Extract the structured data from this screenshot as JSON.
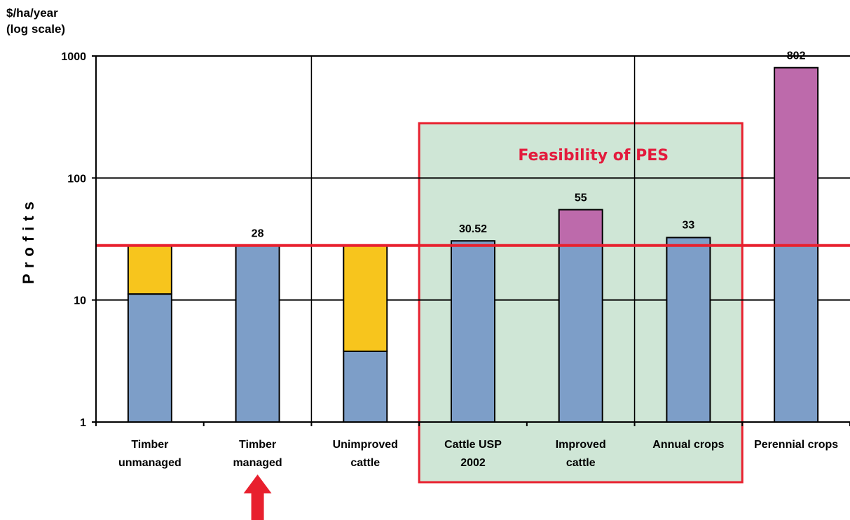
{
  "chart_data": {
    "type": "bar",
    "stacked": true,
    "y_scale": "log",
    "ylim": [
      1,
      1000
    ],
    "yticks": [
      "1000",
      "100",
      "10",
      "1"
    ],
    "ylabel_units": "$/ha/year\n(log scale)",
    "ylabel": "Profits",
    "categories": [
      "Timber\nunmanaged",
      "Timber\nmanaged",
      "Unimproved\ncattle",
      "Cattle USP\n2002",
      "Improved\ncattle",
      "Annual crops",
      "Perennial crops"
    ],
    "segments": [
      {
        "bottom": 1,
        "blue_top": 11.2,
        "top": 28,
        "top_color": "yellow",
        "label": ""
      },
      {
        "bottom": 1,
        "blue_top": 28,
        "top": 28,
        "top_color": "none",
        "label": "28"
      },
      {
        "bottom": 1,
        "blue_top": 3.8,
        "top": 28,
        "top_color": "yellow",
        "label": ""
      },
      {
        "bottom": 1,
        "blue_top": 30.52,
        "top": 30.52,
        "top_color": "none",
        "label": "30.52"
      },
      {
        "bottom": 1,
        "blue_top": 28,
        "top": 55,
        "top_color": "purple",
        "label": "55"
      },
      {
        "bottom": 1,
        "blue_top": 32.5,
        "top": 33,
        "top_color": "none",
        "label": "33"
      },
      {
        "bottom": 1,
        "blue_top": 28,
        "top": 802,
        "top_color": "purple",
        "label": "802"
      }
    ],
    "reference_line": 28,
    "highlight_region": {
      "from_category": 3,
      "to_category": 5,
      "label": "Feasibility of PES"
    },
    "grid": true,
    "colors": {
      "blue": "#7d9ec8",
      "yellow": "#f7c51d",
      "purple": "#bd6aab",
      "reference": "#e8202e",
      "region_fill": "#cfe6d6",
      "region_border": "#e8202e",
      "region_text": "#e31b3c",
      "arrow": "#e8202e"
    }
  }
}
